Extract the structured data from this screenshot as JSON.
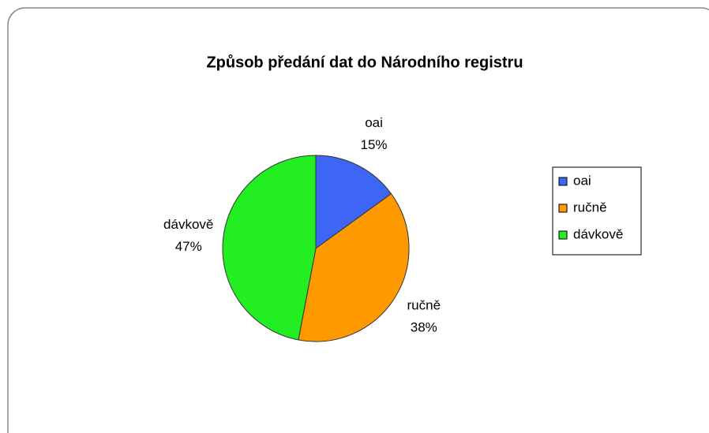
{
  "chart_data": {
    "type": "pie",
    "title": "Způsob předání dat do Národního registru",
    "categories": [
      "oai",
      "ručně",
      "dávkově"
    ],
    "values": [
      15,
      38,
      47
    ],
    "value_labels": [
      "15%",
      "38%",
      "47%"
    ],
    "colors": [
      "#3d66f5",
      "#ff9900",
      "#22ee22"
    ],
    "legend": "right"
  }
}
